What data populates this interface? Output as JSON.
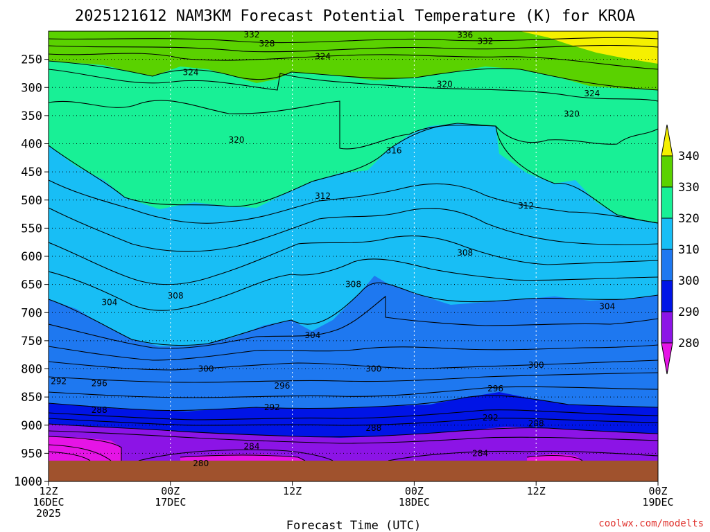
{
  "chart_data": {
    "type": "contour",
    "title": "2025121612 NAM3KM Forecast Potential Temperature (K) for KROA",
    "xlabel": "Forecast Time (UTC)",
    "ylabel": "",
    "credit": "coolwx.com/modelts",
    "y_ticks": [
      "250",
      "300",
      "350",
      "400",
      "450",
      "500",
      "550",
      "600",
      "650",
      "700",
      "750",
      "800",
      "850",
      "900",
      "950",
      "1000"
    ],
    "y_values": [
      250,
      300,
      350,
      400,
      450,
      500,
      550,
      600,
      650,
      700,
      750,
      800,
      850,
      900,
      950,
      1000
    ],
    "ylim": [
      1000,
      200
    ],
    "x_ticks": [
      {
        "hour": 0,
        "line1": "12Z",
        "line2": "16DEC",
        "line3": "2025"
      },
      {
        "hour": 12,
        "line1": "00Z",
        "line2": "17DEC",
        "line3": ""
      },
      {
        "hour": 24,
        "line1": "12Z",
        "line2": "",
        "line3": ""
      },
      {
        "hour": 36,
        "line1": "00Z",
        "line2": "18DEC",
        "line3": ""
      },
      {
        "hour": 48,
        "line1": "12Z",
        "line2": "",
        "line3": ""
      },
      {
        "hour": 60,
        "line1": "00Z",
        "line2": "19DEC",
        "line3": ""
      }
    ],
    "xlim": [
      0,
      60
    ],
    "colorbar": {
      "labels": [
        "340",
        "330",
        "320",
        "310",
        "300",
        "290",
        "280"
      ],
      "colors": [
        "#f5f000",
        "#5ad200",
        "#18f096",
        "#18bef5",
        "#1e78f0",
        "#0014e6",
        "#8c14e6",
        "#e614e6"
      ]
    },
    "contour_labels": [
      {
        "text": "332",
        "hour": 20.0,
        "p": 206
      },
      {
        "text": "336",
        "hour": 41.0,
        "p": 207
      },
      {
        "text": "332",
        "hour": 43.0,
        "p": 218
      },
      {
        "text": "328",
        "hour": 21.5,
        "p": 222
      },
      {
        "text": "324",
        "hour": 27.0,
        "p": 245
      },
      {
        "text": "324",
        "hour": 14.0,
        "p": 273
      },
      {
        "text": "320",
        "hour": 39.0,
        "p": 294
      },
      {
        "text": "324",
        "hour": 53.5,
        "p": 311
      },
      {
        "text": "320",
        "hour": 51.5,
        "p": 347
      },
      {
        "text": "320",
        "hour": 18.5,
        "p": 393
      },
      {
        "text": "316",
        "hour": 34.0,
        "p": 412
      },
      {
        "text": "312",
        "hour": 27.0,
        "p": 493
      },
      {
        "text": "312",
        "hour": 47.0,
        "p": 510
      },
      {
        "text": "308",
        "hour": 41.0,
        "p": 594
      },
      {
        "text": "308",
        "hour": 12.5,
        "p": 670
      },
      {
        "text": "308",
        "hour": 30.0,
        "p": 650
      },
      {
        "text": "304",
        "hour": 6.0,
        "p": 682
      },
      {
        "text": "304",
        "hour": 55.0,
        "p": 689
      },
      {
        "text": "304",
        "hour": 26.0,
        "p": 740
      },
      {
        "text": "300",
        "hour": 15.5,
        "p": 800
      },
      {
        "text": "300",
        "hour": 32.0,
        "p": 800
      },
      {
        "text": "300",
        "hour": 48.0,
        "p": 793
      },
      {
        "text": "292",
        "hour": 1.0,
        "p": 822
      },
      {
        "text": "296",
        "hour": 5.0,
        "p": 826
      },
      {
        "text": "296",
        "hour": 23.0,
        "p": 830
      },
      {
        "text": "296",
        "hour": 44.0,
        "p": 835
      },
      {
        "text": "288",
        "hour": 5.0,
        "p": 873
      },
      {
        "text": "292",
        "hour": 22.0,
        "p": 868
      },
      {
        "text": "292",
        "hour": 43.5,
        "p": 887
      },
      {
        "text": "288",
        "hour": 32.0,
        "p": 905
      },
      {
        "text": "288",
        "hour": 48.0,
        "p": 897
      },
      {
        "text": "284",
        "hour": 20.0,
        "p": 938
      },
      {
        "text": "284",
        "hour": 42.5,
        "p": 950
      },
      {
        "text": "280",
        "hour": 15.0,
        "p": 968
      }
    ]
  }
}
